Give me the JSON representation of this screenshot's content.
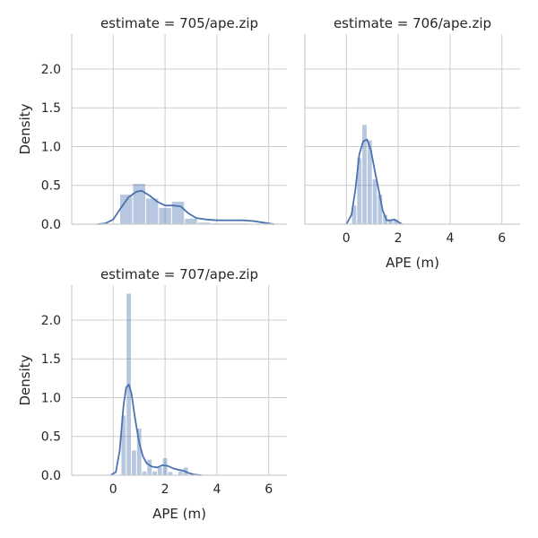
{
  "chart_data": [
    {
      "type": "histogram+kde",
      "title": "estimate = 705/ape.zip",
      "xlabel": "",
      "ylabel": "Density",
      "xlim": [
        -1.6,
        6.7
      ],
      "ylim": [
        0,
        2.45
      ],
      "xticks": [
        0,
        2,
        4,
        6
      ],
      "yticks": [
        0.0,
        0.5,
        1.0,
        1.5,
        2.0
      ],
      "show_xtick_labels": false,
      "show_ytick_labels": true,
      "grid": true,
      "bins": [
        {
          "x0": 0.25,
          "x1": 0.75,
          "density": 0.38
        },
        {
          "x0": 0.75,
          "x1": 1.25,
          "density": 0.52
        },
        {
          "x0": 1.25,
          "x1": 1.75,
          "density": 0.33
        },
        {
          "x0": 1.75,
          "x1": 2.25,
          "density": 0.21
        },
        {
          "x0": 2.25,
          "x1": 2.75,
          "density": 0.29
        },
        {
          "x0": 2.75,
          "x1": 3.25,
          "density": 0.07
        },
        {
          "x0": 3.25,
          "x1": 3.75,
          "density": 0.02
        },
        {
          "x0": 3.75,
          "x1": 4.25,
          "density": 0.01
        },
        {
          "x0": 4.25,
          "x1": 4.75,
          "density": 0.01
        },
        {
          "x0": 4.75,
          "x1": 5.25,
          "density": 0.01
        }
      ],
      "kde": [
        [
          -0.6,
          0.0
        ],
        [
          -0.3,
          0.01
        ],
        [
          0.0,
          0.06
        ],
        [
          0.3,
          0.21
        ],
        [
          0.6,
          0.35
        ],
        [
          0.9,
          0.42
        ],
        [
          1.1,
          0.43
        ],
        [
          1.4,
          0.37
        ],
        [
          1.7,
          0.29
        ],
        [
          2.0,
          0.24
        ],
        [
          2.3,
          0.24
        ],
        [
          2.6,
          0.23
        ],
        [
          2.9,
          0.14
        ],
        [
          3.2,
          0.08
        ],
        [
          3.6,
          0.06
        ],
        [
          4.0,
          0.05
        ],
        [
          4.5,
          0.05
        ],
        [
          5.0,
          0.05
        ],
        [
          5.4,
          0.04
        ],
        [
          5.8,
          0.02
        ],
        [
          6.2,
          0.0
        ]
      ]
    },
    {
      "type": "histogram+kde",
      "title": "estimate = 706/ape.zip",
      "xlabel": "APE (m)",
      "ylabel": "",
      "xlim": [
        -1.6,
        6.7
      ],
      "ylim": [
        0,
        2.45
      ],
      "xticks": [
        0,
        2,
        4,
        6
      ],
      "yticks": [
        0.0,
        0.5,
        1.0,
        1.5,
        2.0
      ],
      "show_xtick_labels": true,
      "show_ytick_labels": false,
      "grid": true,
      "bins": [
        {
          "x0": 0.2,
          "x1": 0.4,
          "density": 0.24
        },
        {
          "x0": 0.4,
          "x1": 0.6,
          "density": 0.85
        },
        {
          "x0": 0.6,
          "x1": 0.8,
          "density": 1.28
        },
        {
          "x0": 0.8,
          "x1": 1.0,
          "density": 1.08
        },
        {
          "x0": 1.0,
          "x1": 1.2,
          "density": 0.58
        },
        {
          "x0": 1.2,
          "x1": 1.4,
          "density": 0.38
        },
        {
          "x0": 1.4,
          "x1": 1.6,
          "density": 0.12
        },
        {
          "x0": 1.6,
          "x1": 1.8,
          "density": 0.04
        },
        {
          "x0": 1.8,
          "x1": 2.0,
          "density": 0.06
        }
      ],
      "kde": [
        [
          0.0,
          0.0
        ],
        [
          0.2,
          0.12
        ],
        [
          0.35,
          0.45
        ],
        [
          0.5,
          0.9
        ],
        [
          0.65,
          1.07
        ],
        [
          0.8,
          1.09
        ],
        [
          0.95,
          0.95
        ],
        [
          1.1,
          0.68
        ],
        [
          1.25,
          0.44
        ],
        [
          1.4,
          0.18
        ],
        [
          1.55,
          0.05
        ],
        [
          1.7,
          0.05
        ],
        [
          1.85,
          0.06
        ],
        [
          2.0,
          0.03
        ],
        [
          2.15,
          0.0
        ]
      ]
    },
    {
      "type": "histogram+kde",
      "title": "estimate = 707/ape.zip",
      "xlabel": "APE (m)",
      "ylabel": "Density",
      "xlim": [
        -1.6,
        6.7
      ],
      "ylim": [
        0,
        2.45
      ],
      "xticks": [
        0,
        2,
        4,
        6
      ],
      "yticks": [
        0.0,
        0.5,
        1.0,
        1.5,
        2.0
      ],
      "show_xtick_labels": true,
      "show_ytick_labels": true,
      "grid": true,
      "bins": [
        {
          "x0": 0.3,
          "x1": 0.5,
          "density": 0.77
        },
        {
          "x0": 0.5,
          "x1": 0.7,
          "density": 2.34
        },
        {
          "x0": 0.7,
          "x1": 0.9,
          "density": 0.32
        },
        {
          "x0": 0.9,
          "x1": 1.1,
          "density": 0.6
        },
        {
          "x0": 1.1,
          "x1": 1.3,
          "density": 0.05
        },
        {
          "x0": 1.3,
          "x1": 1.5,
          "density": 0.2
        },
        {
          "x0": 1.5,
          "x1": 1.7,
          "density": 0.05
        },
        {
          "x0": 1.7,
          "x1": 1.9,
          "density": 0.1
        },
        {
          "x0": 1.9,
          "x1": 2.1,
          "density": 0.22
        },
        {
          "x0": 2.1,
          "x1": 2.3,
          "density": 0.04
        },
        {
          "x0": 2.5,
          "x1": 2.7,
          "density": 0.05
        },
        {
          "x0": 2.7,
          "x1": 2.9,
          "density": 0.1
        }
      ],
      "kde": [
        [
          -0.1,
          0.0
        ],
        [
          0.1,
          0.04
        ],
        [
          0.25,
          0.32
        ],
        [
          0.4,
          0.9
        ],
        [
          0.5,
          1.13
        ],
        [
          0.6,
          1.17
        ],
        [
          0.7,
          1.06
        ],
        [
          0.85,
          0.72
        ],
        [
          1.0,
          0.42
        ],
        [
          1.15,
          0.24
        ],
        [
          1.3,
          0.15
        ],
        [
          1.5,
          0.11
        ],
        [
          1.7,
          0.1
        ],
        [
          1.9,
          0.13
        ],
        [
          2.1,
          0.12
        ],
        [
          2.3,
          0.09
        ],
        [
          2.5,
          0.07
        ],
        [
          2.7,
          0.06
        ],
        [
          2.9,
          0.03
        ],
        [
          3.1,
          0.01
        ],
        [
          3.4,
          0.0
        ]
      ]
    }
  ]
}
